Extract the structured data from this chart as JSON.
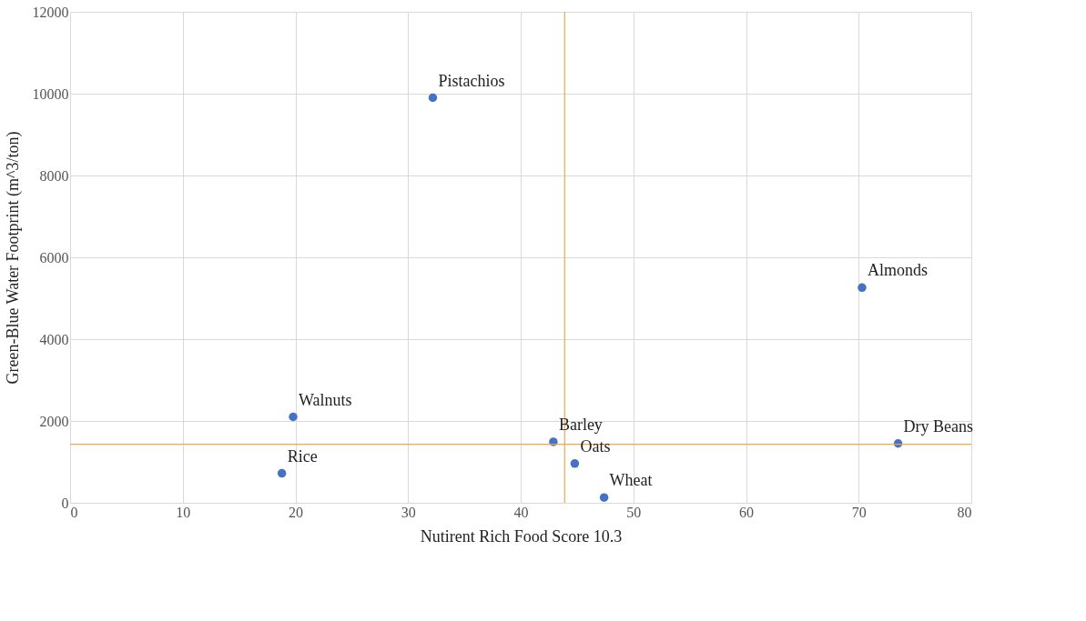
{
  "chart_data": {
    "type": "scatter",
    "xlabel": "Nutirent Rich Food Score 10.3",
    "ylabel": "Green-Blue Water Footprint  (m^3/ton)",
    "x": [
      32.2,
      70.3,
      19.8,
      18.8,
      42.9,
      44.8,
      47.4,
      73.5
    ],
    "series": [
      {
        "color": "#4472c4",
        "values": [
          9900,
          5260,
          2100,
          720,
          1490,
          960,
          130,
          1450
        ]
      }
    ],
    "annotations": [
      {
        "text": "Pistachios",
        "x": 32.2,
        "y": 9900
      },
      {
        "text": "Almonds",
        "x": 70.3,
        "y": 5260
      },
      {
        "text": "Walnuts",
        "x": 19.8,
        "y": 2100
      },
      {
        "text": "Rice",
        "x": 18.8,
        "y": 720
      },
      {
        "text": "Barley",
        "x": 42.9,
        "y": 1490
      },
      {
        "text": "Oats",
        "x": 44.8,
        "y": 960
      },
      {
        "text": "Wheat",
        "x": 47.4,
        "y": 130
      },
      {
        "text": "Dry Beans",
        "x": 73.5,
        "y": 1450
      }
    ],
    "ref_lines": [
      {
        "axis": "x",
        "value": 43.9,
        "color": "#f0a848"
      },
      {
        "axis": "y",
        "value": 1430,
        "color": "#f0a848"
      }
    ],
    "xlim": [
      0,
      80
    ],
    "xticks": [
      0,
      10,
      20,
      30,
      40,
      50,
      60,
      70,
      80
    ],
    "ylim": [
      0,
      12000
    ],
    "yticks": [
      0,
      2000,
      4000,
      6000,
      8000,
      10000,
      12000
    ],
    "grid": true,
    "marker": "circle"
  }
}
